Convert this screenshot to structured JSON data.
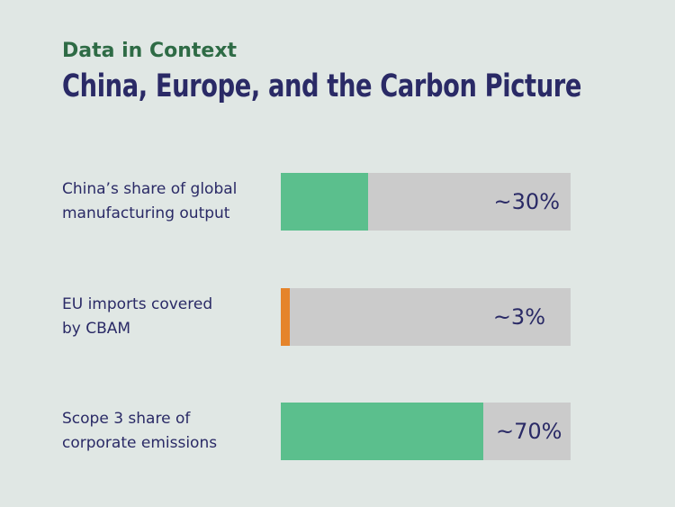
{
  "kicker": "Data in Context",
  "title": "China, Europe, and the Carbon Picture",
  "chart_data": {
    "type": "bar",
    "orientation": "horizontal",
    "categories": [
      "China’s share of global manufacturing output",
      "EU imports covered by CBAM",
      "Scope 3 share of corporate emissions"
    ],
    "values": [
      30,
      3,
      70
    ],
    "value_labels": [
      "~30%",
      "~3%",
      "~70%"
    ],
    "xlim": [
      0,
      100
    ],
    "unit": "%",
    "colors": [
      "#5bbf8d",
      "#e5842b",
      "#5bbf8d"
    ],
    "track_color": "#cbcbcb",
    "grid": false,
    "legend": "none"
  },
  "rows": [
    {
      "label_line1": "China’s share of global",
      "label_line2": "manufacturing output"
    },
    {
      "label_line1": "EU imports covered",
      "label_line2": "by CBAM"
    },
    {
      "label_line1": "Scope 3 share of",
      "label_line2": "corporate emissions"
    }
  ]
}
